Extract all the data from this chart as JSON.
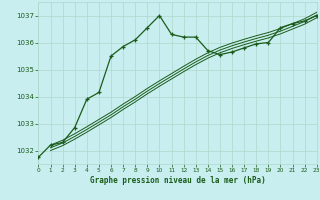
{
  "title": "Graphe pression niveau de la mer (hPa)",
  "background_color": "#c8eef0",
  "grid_color": "#b0d8cc",
  "line_color": "#1a5c1a",
  "x_ticks": [
    0,
    1,
    2,
    3,
    4,
    5,
    6,
    7,
    8,
    9,
    10,
    11,
    12,
    13,
    14,
    15,
    16,
    17,
    18,
    19,
    20,
    21,
    22,
    23
  ],
  "y_ticks": [
    1032,
    1033,
    1034,
    1035,
    1036,
    1037
  ],
  "ylim": [
    1031.5,
    1037.5
  ],
  "xlim": [
    0,
    23
  ],
  "main_series": {
    "x": [
      0,
      1,
      2,
      3,
      4,
      5,
      6,
      7,
      8,
      9,
      10,
      11,
      12,
      13,
      14,
      15,
      16,
      17,
      18,
      19,
      20,
      21,
      22,
      23
    ],
    "y": [
      1031.75,
      1032.2,
      1032.3,
      1032.85,
      1033.9,
      1034.15,
      1035.5,
      1035.85,
      1036.1,
      1036.55,
      1037.0,
      1036.3,
      1036.2,
      1036.2,
      1035.7,
      1035.55,
      1035.65,
      1035.8,
      1035.95,
      1036.0,
      1036.55,
      1036.7,
      1036.8,
      1037.0
    ]
  },
  "smooth_lines": [
    {
      "x": [
        1,
        2,
        3,
        4,
        5,
        6,
        7,
        8,
        9,
        10,
        11,
        12,
        13,
        14,
        15,
        16,
        17,
        18,
        19,
        20,
        21,
        22,
        23
      ],
      "y": [
        1032.0,
        1032.18,
        1032.42,
        1032.68,
        1032.95,
        1033.22,
        1033.52,
        1033.8,
        1034.1,
        1034.38,
        1034.65,
        1034.92,
        1035.18,
        1035.42,
        1035.62,
        1035.78,
        1035.92,
        1036.05,
        1036.17,
        1036.32,
        1036.5,
        1036.68,
        1036.92
      ]
    },
    {
      "x": [
        1,
        2,
        3,
        4,
        5,
        6,
        7,
        8,
        9,
        10,
        11,
        12,
        13,
        14,
        15,
        16,
        17,
        18,
        19,
        20,
        21,
        22,
        23
      ],
      "y": [
        1032.1,
        1032.28,
        1032.52,
        1032.78,
        1033.05,
        1033.32,
        1033.62,
        1033.9,
        1034.2,
        1034.48,
        1034.75,
        1035.02,
        1035.28,
        1035.52,
        1035.72,
        1035.88,
        1036.02,
        1036.15,
        1036.27,
        1036.42,
        1036.6,
        1036.78,
        1037.02
      ]
    },
    {
      "x": [
        1,
        2,
        3,
        4,
        5,
        6,
        7,
        8,
        9,
        10,
        11,
        12,
        13,
        14,
        15,
        16,
        17,
        18,
        19,
        20,
        21,
        22,
        23
      ],
      "y": [
        1032.2,
        1032.38,
        1032.62,
        1032.88,
        1033.15,
        1033.42,
        1033.72,
        1034.0,
        1034.3,
        1034.58,
        1034.85,
        1035.12,
        1035.38,
        1035.62,
        1035.82,
        1035.98,
        1036.12,
        1036.25,
        1036.37,
        1036.52,
        1036.7,
        1036.88,
        1037.12
      ]
    }
  ]
}
